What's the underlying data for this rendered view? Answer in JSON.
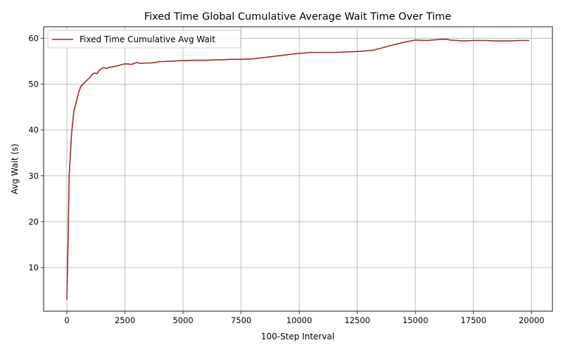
{
  "chart_data": {
    "type": "line",
    "title": "Fixed Time Global Cumulative Average Wait Time Over Time",
    "xlabel": "100-Step Interval",
    "ylabel": "Avg Wait (s)",
    "xlim": [
      -1000,
      20900
    ],
    "ylim": [
      0.5,
      62.5
    ],
    "xticks": [
      0,
      2500,
      5000,
      7500,
      10000,
      12500,
      15000,
      17500,
      20000
    ],
    "yticks": [
      10,
      20,
      30,
      40,
      50,
      60
    ],
    "grid": true,
    "legend_position": "top-left",
    "series": [
      {
        "name": "Fixed Time Cumulative Avg Wait",
        "color": "#9b2a2a",
        "x": [
          0,
          50,
          100,
          200,
          300,
          400,
          500,
          600,
          700,
          800,
          900,
          1000,
          1100,
          1200,
          1300,
          1400,
          1500,
          1600,
          1700,
          1800,
          1900,
          2000,
          2200,
          2400,
          2500,
          2600,
          2800,
          3000,
          3200,
          3400,
          3600,
          3800,
          4000,
          4200,
          4400,
          4600,
          4800,
          5000,
          5500,
          6000,
          6500,
          6700,
          7000,
          7500,
          8000,
          8500,
          9000,
          9500,
          10000,
          10500,
          11000,
          11500,
          12000,
          12500,
          13000,
          13200,
          13500,
          14000,
          14500,
          15000,
          15500,
          16000,
          16300,
          16500,
          16800,
          17000,
          17500,
          18000,
          18500,
          19000,
          19500,
          19900
        ],
        "y": [
          3,
          15,
          30,
          39,
          44,
          46,
          48,
          49.5,
          50,
          50.5,
          51,
          51.5,
          52.2,
          52.4,
          52.3,
          53,
          53.4,
          53.6,
          53.4,
          53.6,
          53.7,
          53.8,
          54,
          54.3,
          54.4,
          54.4,
          54.3,
          54.7,
          54.5,
          54.6,
          54.6,
          54.7,
          54.9,
          54.9,
          55,
          55,
          55.1,
          55.1,
          55.2,
          55.2,
          55.3,
          55.3,
          55.4,
          55.4,
          55.5,
          55.8,
          56.1,
          56.4,
          56.7,
          56.9,
          56.9,
          56.9,
          57.0,
          57.1,
          57.3,
          57.4,
          57.8,
          58.5,
          59.1,
          59.6,
          59.5,
          59.7,
          59.8,
          59.6,
          59.5,
          59.4,
          59.5,
          59.5,
          59.4,
          59.4,
          59.5,
          59.5
        ]
      }
    ]
  }
}
